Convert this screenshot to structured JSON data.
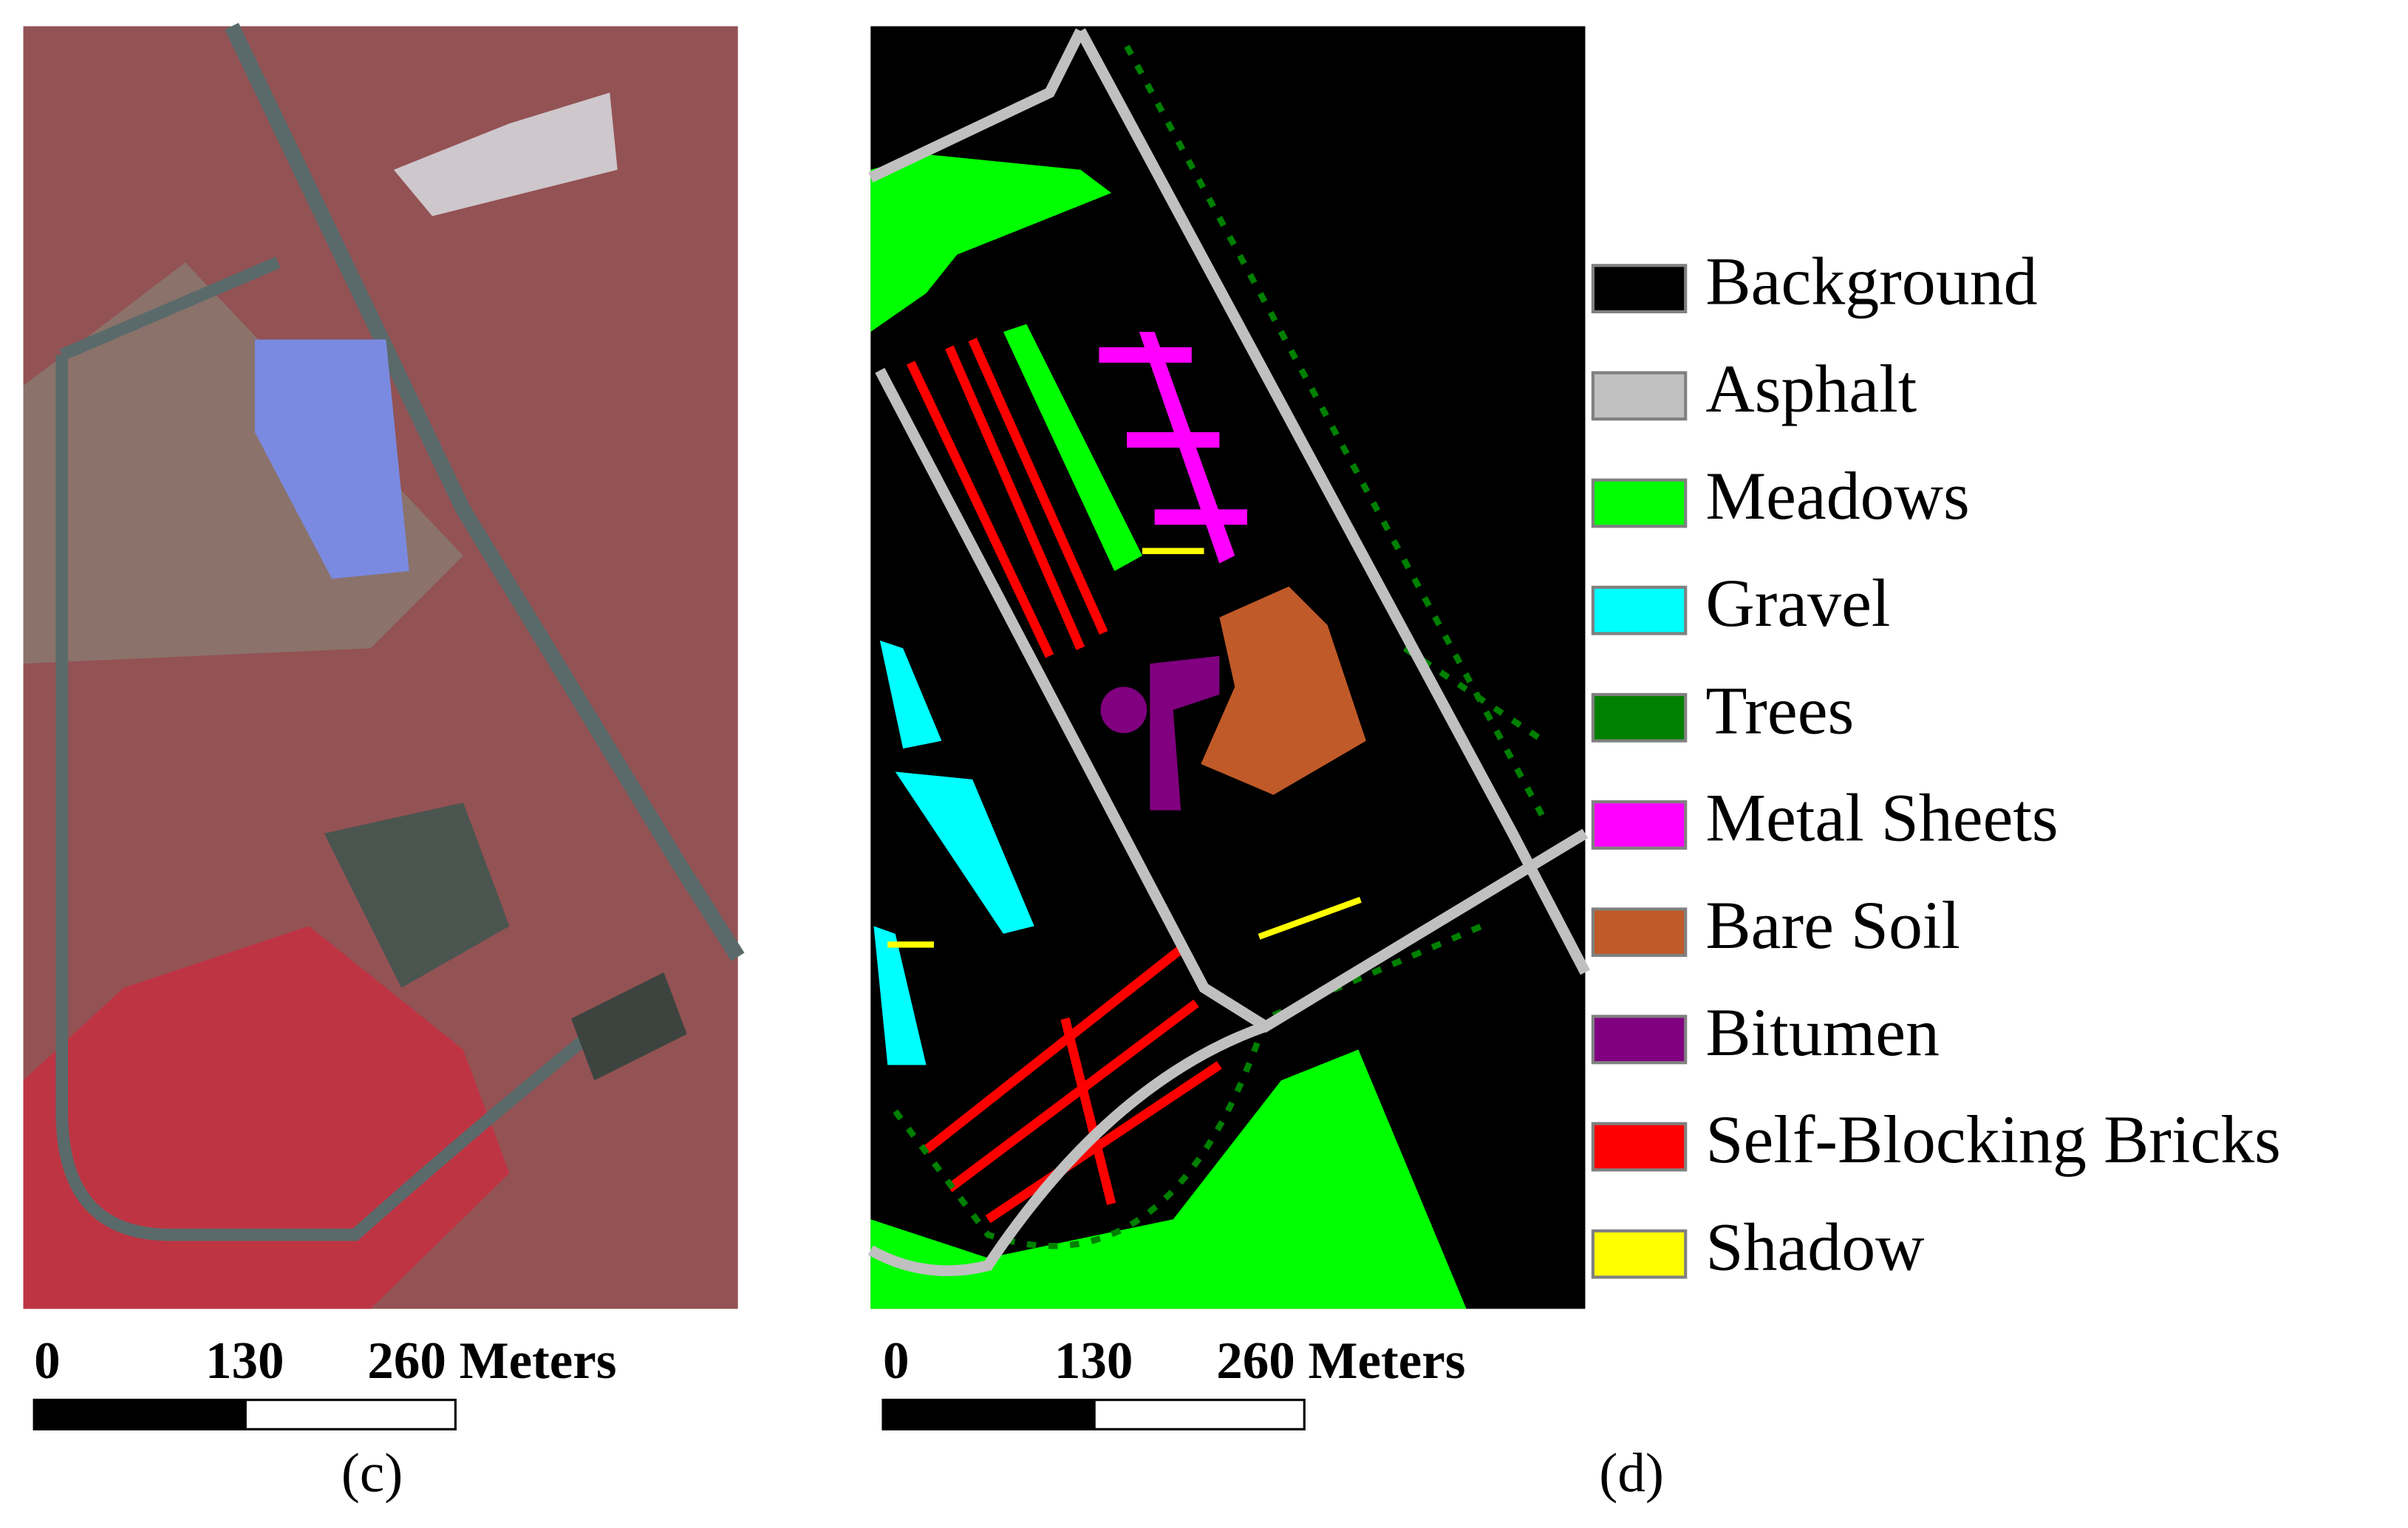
{
  "panels": [
    {
      "label": "(c)",
      "scale_bar": {
        "labels": [
          "0",
          "130",
          "260 Meters"
        ]
      }
    },
    {
      "label": "(d)",
      "scale_bar": {
        "labels": [
          "0",
          "130",
          "260 Meters"
        ]
      }
    }
  ],
  "legend": [
    {
      "label": "Background",
      "color": "#000000"
    },
    {
      "label": "Asphalt",
      "color": "#c0c0c0"
    },
    {
      "label": "Meadows",
      "color": "#00ff00"
    },
    {
      "label": "Gravel",
      "color": "#00ffff"
    },
    {
      "label": "Trees",
      "color": "#008000"
    },
    {
      "label": "Metal Sheets",
      "color": "#ff00ff"
    },
    {
      "label": "Bare Soil",
      "color": "#c05a28"
    },
    {
      "label": "Bitumen",
      "color": "#800080"
    },
    {
      "label": "Self-Blocking Bricks",
      "color": "#ff0000"
    },
    {
      "label": "Shadow",
      "color": "#ffff00"
    }
  ]
}
